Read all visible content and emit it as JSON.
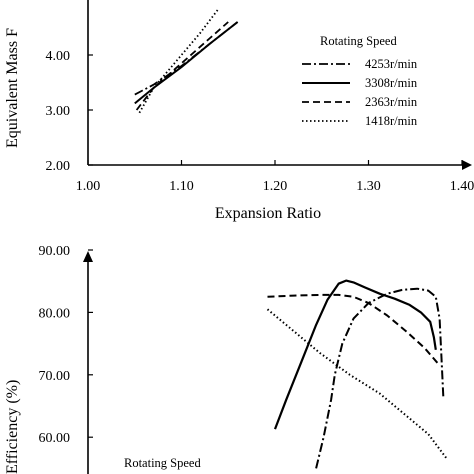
{
  "chart_data": [
    {
      "type": "line",
      "title": "",
      "xlabel": "Expansion Ratio",
      "ylabel": "Equivalent Mass F",
      "xlim": [
        1.0,
        1.4
      ],
      "ylim": [
        2.0,
        5.0
      ],
      "x_ticks": [
        "1.00",
        "1.10",
        "1.20",
        "1.30",
        "1.40"
      ],
      "y_ticks": [
        "2.00",
        "3.00",
        "4.00"
      ],
      "legend_title": "Rotating Speed",
      "legend_position": "right",
      "grid": false,
      "series": [
        {
          "name": "4253r/min",
          "dash": "dashdot",
          "x": [
            1.05,
            1.07,
            1.1,
            1.13,
            1.16
          ],
          "y": [
            3.28,
            3.46,
            3.8,
            4.2,
            4.6
          ]
        },
        {
          "name": "3308r/min",
          "dash": "solid",
          "x": [
            1.05,
            1.07,
            1.1,
            1.13,
            1.16
          ],
          "y": [
            3.12,
            3.4,
            3.78,
            4.2,
            4.6
          ]
        },
        {
          "name": "2363r/min",
          "dash": "dashed",
          "x": [
            1.052,
            1.07,
            1.1,
            1.13,
            1.15
          ],
          "y": [
            3.0,
            3.4,
            3.85,
            4.3,
            4.6
          ]
        },
        {
          "name": "1418r/min",
          "dash": "dotted",
          "x": [
            1.055,
            1.07,
            1.1,
            1.12,
            1.14
          ],
          "y": [
            2.95,
            3.4,
            4.0,
            4.4,
            4.85
          ]
        }
      ]
    },
    {
      "type": "line",
      "title": "",
      "xlabel": "",
      "ylabel": "Efficiency (%)",
      "ylim": [
        55.0,
        90.0
      ],
      "y_ticks": [
        "60.00",
        "70.00",
        "80.00",
        "90.00"
      ],
      "legend_title": "Rotating Speed",
      "legend_position": "bottom-left",
      "grid": false,
      "series": [
        {
          "name": "4253r/min",
          "dash": "dashdot",
          "x": [
            0.61,
            0.63,
            0.65,
            0.66,
            0.68,
            0.71,
            0.75,
            0.8,
            0.84,
            0.88,
            0.91,
            0.93,
            0.94,
            0.945,
            0.95
          ],
          "y": [
            55.0,
            60.0,
            66.0,
            70.0,
            75.0,
            79.0,
            81.5,
            83.0,
            83.6,
            83.8,
            83.5,
            82.5,
            79.0,
            73.0,
            66.5
          ]
        },
        {
          "name": "3308r/min",
          "dash": "solid",
          "x": [
            0.5,
            0.53,
            0.57,
            0.61,
            0.64,
            0.67,
            0.69,
            0.71,
            0.74,
            0.78,
            0.82,
            0.86,
            0.89,
            0.915,
            0.925,
            0.93
          ],
          "y": [
            61.3,
            66.0,
            72.0,
            78.0,
            82.0,
            84.6,
            85.1,
            84.8,
            84.0,
            83.0,
            82.2,
            81.2,
            80.0,
            78.5,
            76.0,
            74.0
          ]
        },
        {
          "name": "2363r/min",
          "dash": "dashed",
          "x": [
            0.48,
            0.55,
            0.62,
            0.67,
            0.71,
            0.75,
            0.8,
            0.85,
            0.9,
            0.94
          ],
          "y": [
            82.5,
            82.7,
            82.8,
            82.8,
            82.5,
            81.5,
            79.5,
            77.0,
            74.3,
            71.5
          ]
        },
        {
          "name": "1418r/min",
          "dash": "dotted",
          "x": [
            0.48,
            0.55,
            0.62,
            0.7,
            0.78,
            0.85,
            0.91,
            0.96
          ],
          "y": [
            80.5,
            77.0,
            73.5,
            70.0,
            67.0,
            63.5,
            60.5,
            56.5
          ]
        }
      ]
    }
  ],
  "legend_top": {
    "title": "Rotating Speed",
    "labels": [
      "4253r/min",
      "3308r/min",
      "2363r/min",
      "1418r/min"
    ]
  },
  "legend_bottom": {
    "title": "Rotating Speed"
  },
  "top_chart": {
    "xlabel": "Expansion Ratio",
    "ylabel": "Equivalent Mass F"
  },
  "bottom_chart": {
    "ylabel": "Efficiency (%)"
  }
}
